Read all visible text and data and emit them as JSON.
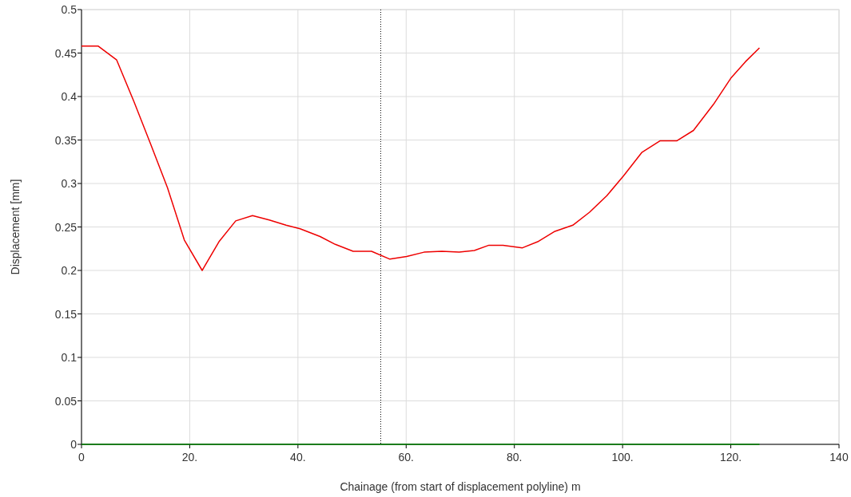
{
  "chart_data": {
    "type": "line",
    "xlabel": "Chainage (from start of displacement polyline) m",
    "ylabel": "Displacement [mm]",
    "xlim": [
      0,
      140
    ],
    "xticks": [
      0,
      {
        "value": 20,
        "label": "20."
      },
      {
        "value": 40,
        "label": "40."
      },
      {
        "value": 60,
        "label": "60."
      },
      {
        "value": 80,
        "label": "80."
      },
      {
        "value": 100,
        "label": "100."
      },
      {
        "value": 120,
        "label": "120."
      },
      140
    ],
    "ylim": [
      0,
      0.5
    ],
    "yticks": [
      0,
      0.05,
      0.1,
      0.15,
      0.2,
      0.25,
      0.3,
      0.35,
      0.4,
      0.45,
      0.5
    ],
    "grid": true,
    "marker": "none",
    "line_style": "solid",
    "series": [
      {
        "color": "#ee0000",
        "x": [
          0,
          3.1,
          6.5,
          9.7,
          12.8,
          15.9,
          19.0,
          22.3,
          25.4,
          28.5,
          31.6,
          34.7,
          37.8,
          40.4,
          44.1,
          46.9,
          50.2,
          53.6,
          57.0,
          60.1,
          63.3,
          66.6,
          69.8,
          72.6,
          75.3,
          77.9,
          81.5,
          84.3,
          87.5,
          90.8,
          93.9,
          97.1,
          100.2,
          103.6,
          106.9,
          110.0,
          113.1,
          116.8,
          120.0,
          122.7,
          125.3
        ],
        "values": [
          0.458,
          0.458,
          0.442,
          0.394,
          0.345,
          0.295,
          0.235,
          0.2,
          0.233,
          0.257,
          0.263,
          0.258,
          0.252,
          0.248,
          0.239,
          0.23,
          0.222,
          0.222,
          0.213,
          0.216,
          0.221,
          0.222,
          0.221,
          0.223,
          0.229,
          0.229,
          0.226,
          0.233,
          0.245,
          0.252,
          0.267,
          0.286,
          0.309,
          0.336,
          0.349,
          0.349,
          0.361,
          0.391,
          0.421,
          0.44,
          0.456
        ]
      },
      {
        "color": "#008000",
        "x": [
          0,
          125.3
        ],
        "values": [
          0,
          0
        ]
      }
    ],
    "ref_lines": [
      {
        "axis": "x",
        "value": 55.3,
        "color": "#000000",
        "line_style": "dotted"
      }
    ]
  }
}
